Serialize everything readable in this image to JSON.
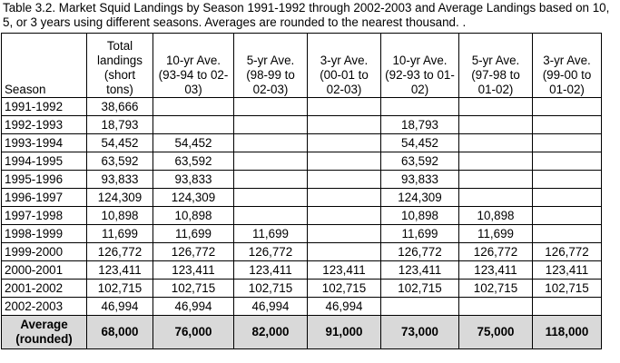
{
  "caption": "Table 3.2.  Market Squid Landings by Season 1991-1992 through 2002-2003 and Average Landings based on 10, 5, or 3 years using different seasons.  Averages are rounded to the nearest thousand. .",
  "headers": [
    "Season",
    "Total landings (short tons)",
    "10-yr Ave. (93-94 to 02-03)",
    "5-yr Ave. (98-99 to 02-03)",
    "3-yr Ave. (00-01 to 02-03)",
    "10-yr Ave. (92-93 to 01-02)",
    "5-yr Ave. (97-98 to 01-02)",
    "3-yr Ave. (99-00 to 01-02)"
  ],
  "rows": [
    [
      "1991-1992",
      "38,666",
      "",
      "",
      "",
      "",
      "",
      ""
    ],
    [
      "1992-1993",
      "18,793",
      "",
      "",
      "",
      "18,793",
      "",
      ""
    ],
    [
      "1993-1994",
      "54,452",
      "54,452",
      "",
      "",
      "54,452",
      "",
      ""
    ],
    [
      "1994-1995",
      "63,592",
      "63,592",
      "",
      "",
      "63,592",
      "",
      ""
    ],
    [
      "1995-1996",
      "93,833",
      "93,833",
      "",
      "",
      "93,833",
      "",
      ""
    ],
    [
      "1996-1997",
      "124,309",
      "124,309",
      "",
      "",
      "124,309",
      "",
      ""
    ],
    [
      "1997-1998",
      "10,898",
      "10,898",
      "",
      "",
      "10,898",
      "10,898",
      ""
    ],
    [
      "1998-1999",
      "11,699",
      "11,699",
      "11,699",
      "",
      "11,699",
      "11,699",
      ""
    ],
    [
      "1999-2000",
      "126,772",
      "126,772",
      "126,772",
      "",
      "126,772",
      "126,772",
      "126,772"
    ],
    [
      "2000-2001",
      "123,411",
      "123,411",
      "123,411",
      "123,411",
      "123,411",
      "123,411",
      "123,411"
    ],
    [
      "2001-2002",
      "102,715",
      "102,715",
      "102,715",
      "102,715",
      "102,715",
      "102,715",
      "102,715"
    ],
    [
      "2002-2003",
      "46,994",
      "46,994",
      "46,994",
      "46,994",
      "",
      "",
      ""
    ]
  ],
  "average_row": [
    "Average (rounded)",
    "68,000",
    "76,000",
    "82,000",
    "91,000",
    "73,000",
    "75,000",
    "118,000"
  ]
}
